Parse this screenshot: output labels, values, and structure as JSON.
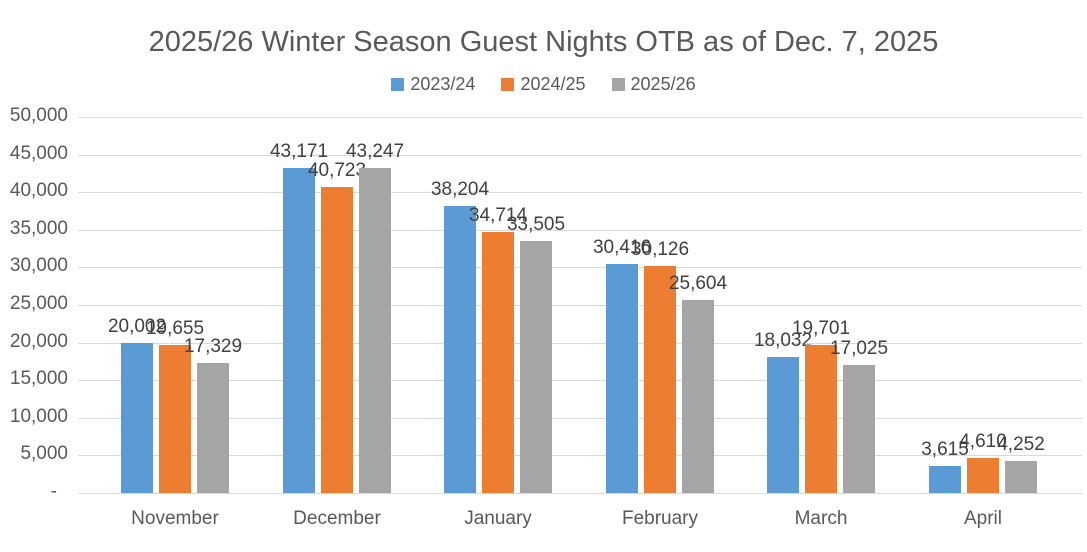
{
  "title": "2025/26 Winter Season Guest Nights OTB as of Dec. 7, 2025",
  "colors": {
    "series_blue": "#5B9BD5",
    "series_orange": "#ED7D31",
    "series_gray": "#A5A5A5",
    "gridline": "#D9D9D9",
    "axis_text": "#595959",
    "data_label_text": "#404040",
    "title_text": "#595959"
  },
  "legend": {
    "items": [
      {
        "label": "2023/24",
        "color": "#5B9BD5"
      },
      {
        "label": "2024/25",
        "color": "#ED7D31"
      },
      {
        "label": "2025/26",
        "color": "#A5A5A5"
      }
    ]
  },
  "chart_data": {
    "type": "bar",
    "title": "2025/26 Winter Season Guest Nights OTB as of Dec. 7, 2025",
    "categories": [
      "November",
      "December",
      "January",
      "February",
      "March",
      "April"
    ],
    "series": [
      {
        "name": "2023/24",
        "color": "#5B9BD5",
        "values": [
          20002,
          43171,
          38204,
          30416,
          18032,
          3615
        ],
        "labels": [
          "20,002",
          "43,171",
          "38,204",
          "30,416",
          "18,032",
          "3,615"
        ]
      },
      {
        "name": "2024/25",
        "color": "#ED7D31",
        "values": [
          19655,
          40723,
          34714,
          30126,
          19701,
          4610
        ],
        "labels": [
          "19,655",
          "40,723",
          "34,714",
          "30,126",
          "19,701",
          "4,610"
        ]
      },
      {
        "name": "2025/26",
        "color": "#A5A5A5",
        "values": [
          17329,
          43247,
          33505,
          25604,
          17025,
          4252
        ],
        "labels": [
          "17,329",
          "43,247",
          "33,505",
          "25,604",
          "17,025",
          "4,252"
        ]
      }
    ],
    "xlabel": "",
    "ylabel": "",
    "ylim": [
      0,
      50000
    ],
    "ytick_step": 5000,
    "ytick_labels": [
      "-",
      "5,000",
      "10,000",
      "15,000",
      "20,000",
      "25,000",
      "30,000",
      "35,000",
      "40,000",
      "45,000",
      "50,000"
    ],
    "grid": true,
    "legend_position": "top",
    "data_labels": "outside-end"
  }
}
